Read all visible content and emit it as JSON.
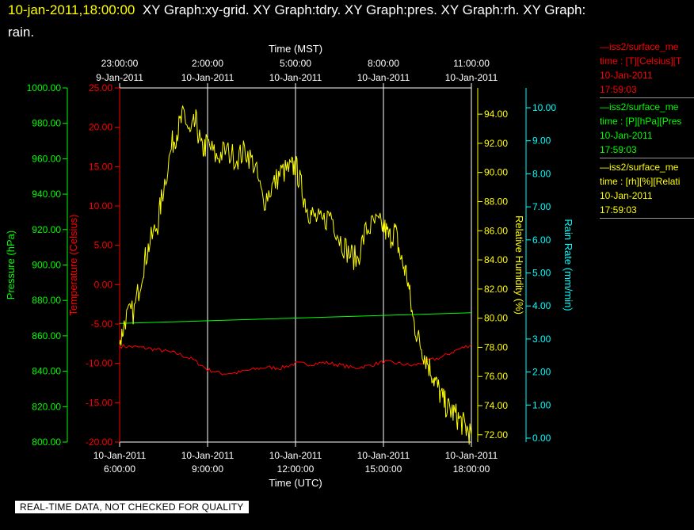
{
  "header": {
    "timestamp": "10-jan-2011,18:00:00",
    "title_rest": "XY Graph:xy-grid.  XY Graph:tdry.  XY Graph:pres.  XY Graph:rh.  XY Graph:",
    "title_line2": "rain."
  },
  "colors": {
    "temperature": "#ff0000",
    "pressure": "#00ff00",
    "humidity": "#ffff00",
    "rain": "#00ffff",
    "grid": "#ffffff",
    "background": "#000000"
  },
  "legend": [
    {
      "lines": [
        "—iss2/surface_me",
        "time : [T][Celsius][T",
        "10-Jan-2011",
        "17:59:03"
      ],
      "color": "#ff0000"
    },
    {
      "lines": [
        "—iss2/surface_me",
        "time : [P][hPa][Pres",
        "10-Jan-2011",
        "17:59:03"
      ],
      "color": "#00ff00"
    },
    {
      "lines": [
        "—iss2/surface_me",
        "time : [rh][%][Relati",
        "10-Jan-2011",
        "17:59:03"
      ],
      "color": "#ffff00"
    }
  ],
  "footer": "REAL-TIME DATA, NOT CHECKED FOR QUALITY",
  "chart_data": {
    "type": "line",
    "grid": true,
    "x_top_label": "Time (MST)",
    "x_bottom_label": "Time (UTC)",
    "x_range_hours_utc": [
      6,
      18
    ],
    "x_bottom_ticks": [
      {
        "h": 6,
        "line1": "10-Jan-2011",
        "line2": "6:00:00"
      },
      {
        "h": 9,
        "line1": "10-Jan-2011",
        "line2": "9:00:00"
      },
      {
        "h": 12,
        "line1": "10-Jan-2011",
        "line2": "12:00:00"
      },
      {
        "h": 15,
        "line1": "10-Jan-2011",
        "line2": "15:00:00"
      },
      {
        "h": 18,
        "line1": "10-Jan-2011",
        "line2": "18:00:00"
      }
    ],
    "x_top_ticks": [
      {
        "h": 6,
        "line1": "23:00:00",
        "line2": "9-Jan-2011"
      },
      {
        "h": 9,
        "line1": "2:00:00",
        "line2": "10-Jan-2011"
      },
      {
        "h": 12,
        "line1": "5:00:00",
        "line2": "10-Jan-2011"
      },
      {
        "h": 15,
        "line1": "8:00:00",
        "line2": "10-Jan-2011"
      },
      {
        "h": 18,
        "line1": "11:00:00",
        "line2": "10-Jan-2011"
      }
    ],
    "axes": {
      "pressure": {
        "label": "Pressure (hPa)",
        "range": [
          800,
          1000
        ],
        "ticks": [
          "800.00",
          "820.00",
          "840.00",
          "860.00",
          "880.00",
          "900.00",
          "920.00",
          "940.00",
          "960.00",
          "980.00",
          "1000.00"
        ]
      },
      "temperature": {
        "label": "Temperature (Celsius)",
        "range": [
          -20,
          25
        ],
        "ticks": [
          "-20.00",
          "-15.00",
          "-10.00",
          "-5.00",
          "0.00",
          "5.00",
          "10.00",
          "15.00",
          "20.00",
          "25.00"
        ]
      },
      "humidity": {
        "label": "Relative Humidity (%)",
        "range": [
          71.5,
          95.8
        ],
        "ticks": [
          "72.00",
          "74.00",
          "76.00",
          "78.00",
          "80.00",
          "82.00",
          "84.00",
          "86.00",
          "88.00",
          "90.00",
          "92.00",
          "94.00"
        ]
      },
      "rain": {
        "label": "Rain Rate (mm/min)",
        "range": [
          -0.12,
          10.6
        ],
        "ticks": [
          "0.00",
          "1.00",
          "2.00",
          "3.00",
          "4.00",
          "5.00",
          "6.00",
          "7.00",
          "8.00",
          "9.00",
          "10.00"
        ]
      }
    },
    "series": [
      {
        "name": "Temperature",
        "axis": "temperature",
        "x": [
          6.0,
          6.5,
          7.0,
          7.5,
          8.0,
          8.5,
          9.0,
          9.5,
          10.0,
          10.5,
          11.0,
          11.5,
          12.0,
          12.5,
          13.0,
          13.5,
          14.0,
          14.5,
          15.0,
          15.5,
          16.0,
          16.5,
          17.0,
          17.5,
          18.0
        ],
        "values": [
          -7.8,
          -7.9,
          -8.1,
          -8.4,
          -8.8,
          -9.5,
          -10.8,
          -11.3,
          -11.2,
          -10.8,
          -10.5,
          -10.6,
          -10.0,
          -10.1,
          -9.9,
          -10.2,
          -10.6,
          -10.3,
          -9.8,
          -10.0,
          -10.3,
          -9.7,
          -9.2,
          -8.3,
          -7.6
        ]
      },
      {
        "name": "Pressure",
        "axis": "pressure",
        "x": [
          6.0,
          18.0
        ],
        "values": [
          867.0,
          873.0
        ]
      },
      {
        "name": "Relative Humidity",
        "axis": "humidity",
        "x": [
          6.0,
          6.2,
          6.5,
          6.8,
          7.0,
          7.3,
          7.5,
          7.8,
          8.0,
          8.2,
          8.4,
          8.6,
          8.8,
          9.0,
          9.3,
          9.6,
          10.0,
          10.3,
          10.6,
          10.9,
          11.2,
          11.5,
          11.8,
          12.0,
          12.2,
          12.4,
          12.6,
          12.9,
          13.2,
          13.5,
          13.8,
          14.1,
          14.4,
          14.7,
          15.0,
          15.2,
          15.4,
          15.6,
          15.8,
          16.0,
          16.2,
          16.4,
          16.6,
          16.8,
          17.0,
          17.2,
          17.4,
          17.6,
          17.8,
          18.0
        ],
        "values": [
          78.2,
          80.0,
          80.5,
          83.5,
          85.0,
          86.5,
          89.0,
          92.0,
          93.0,
          94.0,
          92.5,
          93.5,
          91.5,
          92.0,
          91.0,
          91.5,
          91.0,
          91.5,
          90.5,
          88.0,
          89.0,
          90.0,
          90.2,
          90.5,
          89.0,
          87.5,
          87.0,
          86.5,
          87.2,
          85.5,
          84.5,
          84.0,
          86.0,
          86.5,
          86.3,
          85.5,
          86.0,
          84.0,
          83.0,
          80.0,
          78.5,
          77.5,
          76.5,
          75.5,
          74.5,
          73.8,
          73.5,
          73.0,
          72.5,
          72.0
        ]
      }
    ]
  }
}
